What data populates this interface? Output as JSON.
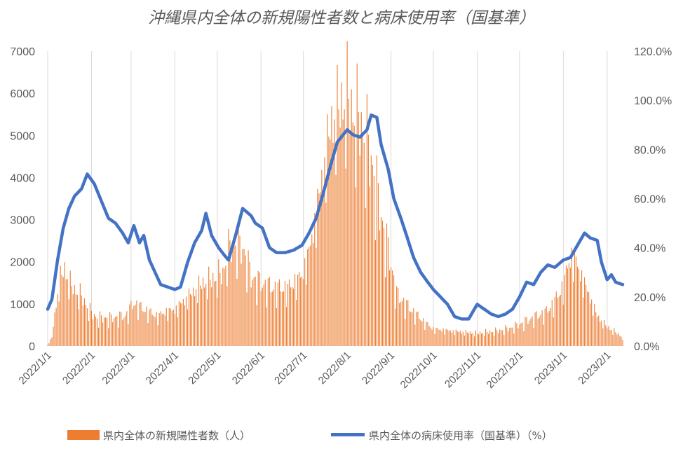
{
  "chart_data": {
    "type": "bar+line",
    "title": "沖縄県内全体の新規陽性者数と病床使用率（国基準）",
    "x_range": [
      "2022/1/1",
      "2023/2/12"
    ],
    "x_ticks": [
      "2022/1/1",
      "2022/2/1",
      "2022/3/1",
      "2022/4/1",
      "2022/5/1",
      "2022/6/1",
      "2022/7/1",
      "2022/8/1",
      "2022/9/1",
      "2022/10/1",
      "2022/11/1",
      "2022/12/1",
      "2023/1/1",
      "2023/2/1"
    ],
    "y_left": {
      "ticks": [
        "0",
        "1000",
        "2000",
        "3000",
        "4000",
        "5000",
        "6000",
        "7000"
      ],
      "range": [
        0,
        7000
      ]
    },
    "y_right": {
      "ticks": [
        "0.0%",
        "20.0%",
        "40.0%",
        "60.0%",
        "80.0%",
        "100.0%",
        "120.0%"
      ],
      "range": [
        0,
        120
      ]
    },
    "grid": "vertical",
    "legend_position": "bottom",
    "series": [
      {
        "name": "県内全体の新規陽性者数（人）",
        "type": "bar",
        "axis": "left",
        "color": "#ed7d31",
        "anchors": [
          [
            "2022/1/1",
            30
          ],
          [
            "2022/1/4",
            200
          ],
          [
            "2022/1/7",
            1000
          ],
          [
            "2022/1/10",
            1600
          ],
          [
            "2022/1/13",
            1800
          ],
          [
            "2022/1/16",
            1500
          ],
          [
            "2022/1/20",
            1300
          ],
          [
            "2022/1/25",
            1150
          ],
          [
            "2022/1/31",
            800
          ],
          [
            "2022/2/5",
            650
          ],
          [
            "2022/2/15",
            650
          ],
          [
            "2022/2/25",
            700
          ],
          [
            "2022/3/3",
            1000
          ],
          [
            "2022/3/10",
            850
          ],
          [
            "2022/3/20",
            700
          ],
          [
            "2022/3/25",
            800
          ],
          [
            "2022/4/1",
            850
          ],
          [
            "2022/4/10",
            1150
          ],
          [
            "2022/4/20",
            1450
          ],
          [
            "2022/5/1",
            1600
          ],
          [
            "2022/5/5",
            1700
          ],
          [
            "2022/5/10",
            2300
          ],
          [
            "2022/5/15",
            2400
          ],
          [
            "2022/5/20",
            2200
          ],
          [
            "2022/5/25",
            1600
          ],
          [
            "2022/6/1",
            1450
          ],
          [
            "2022/6/10",
            1350
          ],
          [
            "2022/6/20",
            1350
          ],
          [
            "2022/6/30",
            1650
          ],
          [
            "2022/7/5",
            2200
          ],
          [
            "2022/7/10",
            3100
          ],
          [
            "2022/7/15",
            4100
          ],
          [
            "2022/7/20",
            5100
          ],
          [
            "2022/7/25",
            5500
          ],
          [
            "2022/8/1",
            5800
          ],
          [
            "2022/8/5",
            5400
          ],
          [
            "2022/8/10",
            5200
          ],
          [
            "2022/8/15",
            4700
          ],
          [
            "2022/8/20",
            4000
          ],
          [
            "2022/8/25",
            3000
          ],
          [
            "2022/9/1",
            1900
          ],
          [
            "2022/9/5",
            1200
          ],
          [
            "2022/9/15",
            850
          ],
          [
            "2022/9/25",
            550
          ],
          [
            "2022/10/1",
            400
          ],
          [
            "2022/10/15",
            350
          ],
          [
            "2022/11/1",
            300
          ],
          [
            "2022/11/15",
            350
          ],
          [
            "2022/11/25",
            420
          ],
          [
            "2022/12/1",
            500
          ],
          [
            "2022/12/10",
            650
          ],
          [
            "2022/12/20",
            800
          ],
          [
            "2022/12/25",
            1000
          ],
          [
            "2023/1/1",
            1400
          ],
          [
            "2023/1/5",
            2000
          ],
          [
            "2023/1/8",
            2100
          ],
          [
            "2023/1/12",
            1800
          ],
          [
            "2023/1/18",
            1300
          ],
          [
            "2023/1/25",
            700
          ],
          [
            "2023/2/1",
            450
          ],
          [
            "2023/2/8",
            300
          ],
          [
            "2023/2/12",
            200
          ]
        ]
      },
      {
        "name": "県内全体の病床使用率（国基準）（%）",
        "type": "line",
        "axis": "right",
        "color": "#4472c4",
        "anchors": [
          [
            "2022/1/1",
            15
          ],
          [
            "2022/1/4",
            19
          ],
          [
            "2022/1/8",
            35
          ],
          [
            "2022/1/12",
            48
          ],
          [
            "2022/1/16",
            56
          ],
          [
            "2022/1/20",
            61
          ],
          [
            "2022/1/25",
            64
          ],
          [
            "2022/1/29",
            70
          ],
          [
            "2022/2/3",
            66
          ],
          [
            "2022/2/8",
            59
          ],
          [
            "2022/2/13",
            52
          ],
          [
            "2022/2/18",
            50
          ],
          [
            "2022/2/23",
            46
          ],
          [
            "2022/2/27",
            42
          ],
          [
            "2022/3/3",
            49
          ],
          [
            "2022/3/7",
            42
          ],
          [
            "2022/3/10",
            45
          ],
          [
            "2022/3/14",
            35
          ],
          [
            "2022/3/18",
            30
          ],
          [
            "2022/3/22",
            25
          ],
          [
            "2022/3/27",
            24
          ],
          [
            "2022/4/1",
            23
          ],
          [
            "2022/4/5",
            24
          ],
          [
            "2022/4/10",
            34
          ],
          [
            "2022/4/15",
            42
          ],
          [
            "2022/4/20",
            47
          ],
          [
            "2022/4/23",
            54
          ],
          [
            "2022/4/27",
            45
          ],
          [
            "2022/5/2",
            40
          ],
          [
            "2022/5/6",
            37
          ],
          [
            "2022/5/9",
            35
          ],
          [
            "2022/5/14",
            45
          ],
          [
            "2022/5/19",
            56
          ],
          [
            "2022/5/25",
            53
          ],
          [
            "2022/5/28",
            50
          ],
          [
            "2022/6/2",
            48
          ],
          [
            "2022/6/7",
            40
          ],
          [
            "2022/6/12",
            38
          ],
          [
            "2022/6/18",
            38
          ],
          [
            "2022/6/24",
            39
          ],
          [
            "2022/6/30",
            41
          ],
          [
            "2022/7/5",
            46
          ],
          [
            "2022/7/10",
            52
          ],
          [
            "2022/7/15",
            62
          ],
          [
            "2022/7/20",
            73
          ],
          [
            "2022/7/25",
            83
          ],
          [
            "2022/8/1",
            88
          ],
          [
            "2022/8/5",
            86
          ],
          [
            "2022/8/10",
            85
          ],
          [
            "2022/8/15",
            88
          ],
          [
            "2022/8/18",
            94
          ],
          [
            "2022/8/22",
            93
          ],
          [
            "2022/8/25",
            82
          ],
          [
            "2022/8/30",
            72
          ],
          [
            "2022/9/3",
            60
          ],
          [
            "2022/9/8",
            52
          ],
          [
            "2022/9/12",
            45
          ],
          [
            "2022/9/17",
            36
          ],
          [
            "2022/9/22",
            30
          ],
          [
            "2022/9/27",
            26
          ],
          [
            "2022/10/1",
            23
          ],
          [
            "2022/10/6",
            20
          ],
          [
            "2022/10/11",
            17
          ],
          [
            "2022/10/16",
            12
          ],
          [
            "2022/10/21",
            11
          ],
          [
            "2022/10/26",
            11
          ],
          [
            "2022/11/1",
            17
          ],
          [
            "2022/11/6",
            15
          ],
          [
            "2022/11/11",
            13
          ],
          [
            "2022/11/16",
            12
          ],
          [
            "2022/11/21",
            13
          ],
          [
            "2022/11/26",
            15
          ],
          [
            "2022/12/1",
            20
          ],
          [
            "2022/12/6",
            26
          ],
          [
            "2022/12/11",
            25
          ],
          [
            "2022/12/16",
            30
          ],
          [
            "2022/12/21",
            33
          ],
          [
            "2022/12/26",
            32
          ],
          [
            "2023/1/1",
            35
          ],
          [
            "2023/1/6",
            36
          ],
          [
            "2023/1/12",
            42
          ],
          [
            "2023/1/16",
            46
          ],
          [
            "2023/1/20",
            44
          ],
          [
            "2023/1/25",
            43
          ],
          [
            "2023/1/28",
            34
          ],
          [
            "2023/2/1",
            27
          ],
          [
            "2023/2/4",
            29
          ],
          [
            "2023/2/7",
            26
          ],
          [
            "2023/2/12",
            25
          ]
        ]
      }
    ]
  }
}
